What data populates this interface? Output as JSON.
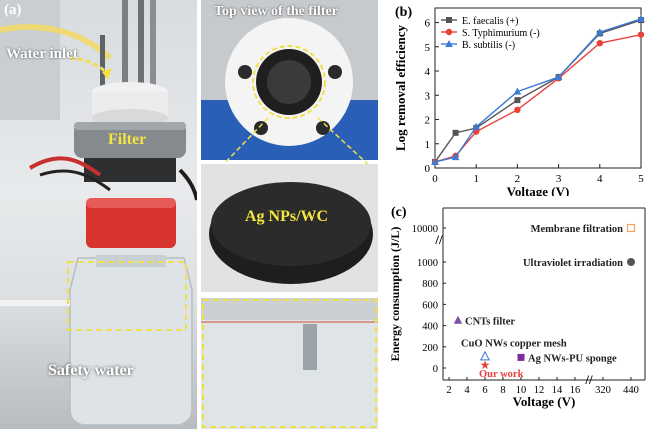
{
  "panel_a": {
    "label": "(a)",
    "water_inlet": "Water inlet",
    "filter": "Filter",
    "safety_water": "Safety water",
    "top_view_title": "Top view of the filter",
    "ag_nps_wc": "Ag NPs/WC"
  },
  "panel_b": {
    "label": "(b)",
    "chart_data": {
      "type": "line",
      "xlabel": "Voltage (V)",
      "ylabel": "Log removal efficiency",
      "xlim": [
        0,
        5
      ],
      "ylim": [
        0,
        6.6
      ],
      "x_ticks": [
        "0",
        "1",
        "2",
        "3",
        "4",
        "5"
      ],
      "y_ticks": [
        "0",
        "1",
        "2",
        "3",
        "4",
        "5",
        "6"
      ],
      "x": [
        0,
        0.5,
        1,
        2,
        3,
        4,
        5
      ],
      "legend_position": "top-left",
      "series": [
        {
          "name": "E. faecalis (+)",
          "color": "#555555",
          "marker": "square",
          "values": [
            0.25,
            1.45,
            1.65,
            2.8,
            3.75,
            5.55,
            6.1
          ]
        },
        {
          "name": "S. Typhimurium (-)",
          "color": "#e8413c",
          "marker": "circle",
          "values": [
            0.25,
            0.5,
            1.5,
            2.4,
            3.7,
            5.15,
            5.5
          ]
        },
        {
          "name": "B. subtilis (-)",
          "color": "#3a7bd5",
          "marker": "triangle",
          "values": [
            0.25,
            0.45,
            1.7,
            3.15,
            3.75,
            5.6,
            6.15
          ]
        }
      ]
    }
  },
  "panel_c": {
    "label": "(c)",
    "chart_data": {
      "type": "scatter",
      "xlabel": "Voltage (V)",
      "ylabel": "Energy consumption (J/L)",
      "x_ticks": [
        "2",
        "4",
        "6",
        "8",
        "10",
        "12",
        "14",
        "16",
        "320",
        "440"
      ],
      "y_ticks": [
        "0",
        "200",
        "400",
        "600",
        "800",
        "1000",
        "10000"
      ],
      "broken_axes": true,
      "points": [
        {
          "label": "Membrane filtration",
          "x": 440,
          "y": 10000,
          "marker": "open-square",
          "color": "#f5a254"
        },
        {
          "label": "Ultraviolet irradiation",
          "x": 440,
          "y": 1000,
          "marker": "circle",
          "color": "#555555"
        },
        {
          "label": "CNTs filter",
          "x": 3,
          "y": 450,
          "marker": "triangle",
          "color": "#7b4fa5"
        },
        {
          "label": "CuO NWs copper mesh",
          "x": 6,
          "y": 110,
          "marker": "open-triangle",
          "color": "#3a7bd5"
        },
        {
          "label": "Ag NWs-PU sponge",
          "x": 10,
          "y": 100,
          "marker": "square",
          "color": "#7b2d9b"
        },
        {
          "label": "Our work",
          "x": 6,
          "y": 30,
          "marker": "star",
          "color": "#e8413c"
        }
      ]
    }
  }
}
